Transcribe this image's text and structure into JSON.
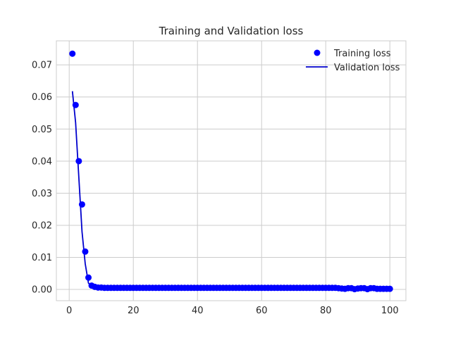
{
  "chart_data": {
    "type": "line",
    "title": "Training and Validation loss",
    "xlabel": "",
    "ylabel": "",
    "xlim": [
      -4,
      105
    ],
    "ylim": [
      -0.0035,
      0.0775
    ],
    "x_ticks": [
      0,
      20,
      40,
      60,
      80,
      100
    ],
    "y_ticks": [
      0.0,
      0.01,
      0.02,
      0.03,
      0.04,
      0.05,
      0.06,
      0.07
    ],
    "y_tick_labels": [
      "0.00",
      "0.01",
      "0.02",
      "0.03",
      "0.04",
      "0.05",
      "0.06",
      "0.07"
    ],
    "x_tick_labels": [
      "0",
      "20",
      "40",
      "60",
      "80",
      "100"
    ],
    "grid": true,
    "legend_position": "top-right",
    "series": [
      {
        "name": "Training loss",
        "style": "points",
        "color": "#0000ff",
        "x": [
          1,
          2,
          3,
          4,
          5,
          6,
          7,
          8,
          9,
          10,
          11,
          12,
          13,
          14,
          15,
          16,
          17,
          18,
          19,
          20,
          21,
          22,
          23,
          24,
          25,
          26,
          27,
          28,
          29,
          30,
          31,
          32,
          33,
          34,
          35,
          36,
          37,
          38,
          39,
          40,
          41,
          42,
          43,
          44,
          45,
          46,
          47,
          48,
          49,
          50,
          51,
          52,
          53,
          54,
          55,
          56,
          57,
          58,
          59,
          60,
          61,
          62,
          63,
          64,
          65,
          66,
          67,
          68,
          69,
          70,
          71,
          72,
          73,
          74,
          75,
          76,
          77,
          78,
          79,
          80,
          81,
          82,
          83,
          84,
          85,
          86,
          87,
          88,
          89,
          90,
          91,
          92,
          93,
          94,
          95,
          96,
          97,
          98,
          99,
          100
        ],
        "y": [
          0.0735,
          0.0575,
          0.04,
          0.0265,
          0.0118,
          0.0037,
          0.0012,
          0.0008,
          0.0006,
          0.0006,
          0.0005,
          0.0005,
          0.0005,
          0.0005,
          0.0005,
          0.0005,
          0.0005,
          0.0005,
          0.0005,
          0.0005,
          0.0005,
          0.0005,
          0.0005,
          0.0005,
          0.0005,
          0.0005,
          0.0005,
          0.0005,
          0.0005,
          0.0005,
          0.0005,
          0.0005,
          0.0005,
          0.0005,
          0.0005,
          0.0005,
          0.0005,
          0.0005,
          0.0005,
          0.0005,
          0.0005,
          0.0005,
          0.0005,
          0.0005,
          0.0005,
          0.0005,
          0.0005,
          0.0005,
          0.0005,
          0.0005,
          0.0005,
          0.0005,
          0.0005,
          0.0005,
          0.0005,
          0.0005,
          0.0005,
          0.0005,
          0.0005,
          0.0005,
          0.0005,
          0.0005,
          0.0005,
          0.0005,
          0.0005,
          0.0005,
          0.0005,
          0.0005,
          0.0005,
          0.0005,
          0.0005,
          0.0005,
          0.0005,
          0.0005,
          0.0005,
          0.0005,
          0.0005,
          0.0005,
          0.0005,
          0.0005,
          0.0005,
          0.0005,
          0.0005,
          0.0004,
          0.0003,
          0.0002,
          0.0004,
          0.0004,
          0.0001,
          0.0003,
          0.0004,
          0.0004,
          0.0001,
          0.0004,
          0.0004,
          0.0002,
          0.0002,
          0.0002,
          0.0002,
          0.0002
        ]
      },
      {
        "name": "Validation loss",
        "style": "line",
        "color": "#0000cd",
        "x": [
          1,
          2,
          3,
          4,
          5,
          6,
          7,
          8,
          9,
          10,
          11,
          12,
          15,
          20,
          30,
          40,
          50,
          60,
          70,
          80,
          84,
          86,
          88,
          90,
          92,
          94,
          96,
          98,
          100
        ],
        "y": [
          0.0618,
          0.052,
          0.035,
          0.018,
          0.008,
          0.002,
          0.0008,
          0.0006,
          0.0005,
          0.0005,
          0.0005,
          0.0005,
          0.0005,
          0.0005,
          0.0005,
          0.0005,
          0.0005,
          0.0005,
          0.0005,
          0.0005,
          0.0005,
          0.0003,
          0.0003,
          0.0003,
          0.0003,
          0.0003,
          0.0002,
          0.0002,
          0.0002
        ]
      }
    ]
  }
}
